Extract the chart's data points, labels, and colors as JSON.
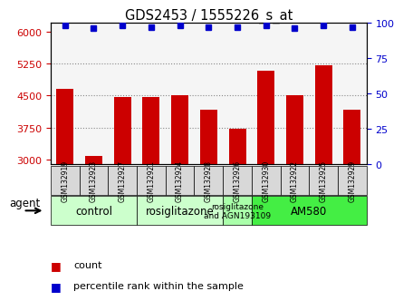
{
  "title": "GDS2453 / 1555226_s_at",
  "samples": [
    "GSM132919",
    "GSM132923",
    "GSM132927",
    "GSM132921",
    "GSM132924",
    "GSM132928",
    "GSM132926",
    "GSM132930",
    "GSM132922",
    "GSM132925",
    "GSM132929"
  ],
  "counts": [
    4650,
    3080,
    4460,
    4460,
    4520,
    4180,
    3720,
    5080,
    4520,
    5200,
    4180
  ],
  "percentiles": [
    98,
    96,
    98,
    97,
    98,
    97,
    97,
    98,
    96,
    98,
    97
  ],
  "bar_color": "#cc0000",
  "dot_color": "#0000cc",
  "ylim_left": [
    2900,
    6200
  ],
  "ylim_right": [
    0,
    100
  ],
  "yticks_left": [
    3000,
    3750,
    4500,
    5250,
    6000
  ],
  "yticks_right": [
    0,
    25,
    50,
    75,
    100
  ],
  "groups": [
    {
      "label": "control",
      "start": 0,
      "end": 3,
      "color": "#ccffcc"
    },
    {
      "label": "rosiglitazone",
      "start": 3,
      "end": 6,
      "color": "#ccffcc"
    },
    {
      "label": "rosiglitazone\nand AGN193109",
      "start": 6,
      "end": 7,
      "color": "#aaffaa"
    },
    {
      "label": "AM580",
      "start": 7,
      "end": 11,
      "color": "#44ee44"
    }
  ],
  "agent_label": "agent",
  "legend_count_label": "count",
  "legend_percentile_label": "percentile rank within the sample",
  "grid_color": "#888888",
  "bg_color": "#ffffff",
  "plot_bg_color": "#f5f5f5",
  "tick_bg_color": "#d8d8d8"
}
